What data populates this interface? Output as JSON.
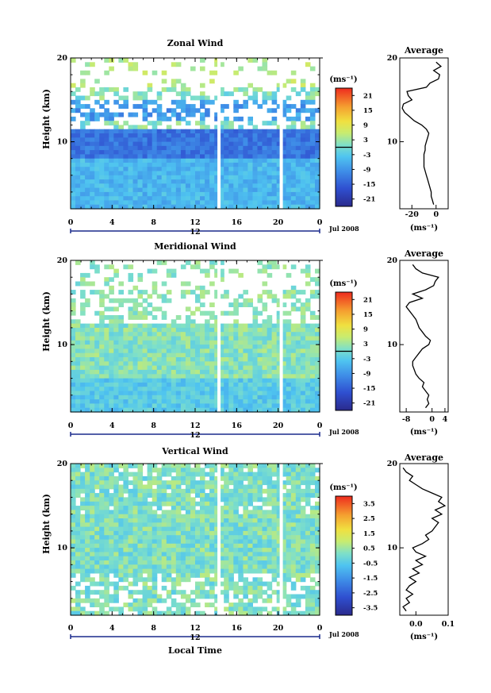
{
  "chart_data": [
    {
      "id": "zonal",
      "type": "heatmap",
      "title": "Zonal Wind",
      "ylabel": "Height (km)",
      "xticks": [
        "0",
        "4",
        "8",
        "12",
        "16",
        "20",
        "0"
      ],
      "xlim": [
        0,
        24
      ],
      "ylim": [
        2,
        20
      ],
      "yticks": [
        10,
        20
      ],
      "day_label": "12",
      "date_label": "Jul 2008",
      "gaps_local_time": [
        14.3,
        20.3
      ],
      "colorbar": {
        "unit": "(ms⁻¹)",
        "ticks": [
          "21",
          "15",
          "9",
          "3",
          "-3",
          "-9",
          "-15",
          "-21"
        ],
        "range": [
          -24,
          24
        ],
        "zero_line": true
      },
      "profile": {
        "title": "Average",
        "xticks": [
          "-20",
          "0"
        ],
        "xlim": [
          -30,
          10
        ],
        "unit": "(ms⁻¹)",
        "height": [
          2.5,
          3,
          3.5,
          4,
          4.5,
          5,
          5.5,
          6,
          6.5,
          7,
          7.5,
          8,
          8.5,
          9,
          9.5,
          10,
          10.5,
          11,
          11.5,
          12,
          12.5,
          13,
          13.5,
          14,
          14.5,
          15,
          15.5,
          16,
          16.5,
          17,
          17.5,
          18,
          18.5,
          19,
          19.5
        ],
        "value": [
          -2,
          -3,
          -4,
          -4,
          -5,
          -6,
          -7,
          -8,
          -9,
          -10,
          -10,
          -10,
          -10,
          -9,
          -9,
          -8,
          -7,
          -6,
          -8,
          -12,
          -18,
          -22,
          -26,
          -28,
          -27,
          -20,
          -23,
          -24,
          -8,
          -5,
          2,
          3,
          -2,
          4,
          0
        ]
      }
    },
    {
      "id": "meridional",
      "type": "heatmap",
      "title": "Meridional Wind",
      "ylabel": "Height (km)",
      "xticks": [
        "0",
        "4",
        "8",
        "12",
        "16",
        "20",
        "0"
      ],
      "xlim": [
        0,
        24
      ],
      "ylim": [
        2,
        20
      ],
      "yticks": [
        10,
        20
      ],
      "day_label": "12",
      "date_label": "Jul 2008",
      "gaps_local_time": [
        14.3,
        20.3
      ],
      "colorbar": {
        "unit": "(ms⁻¹)",
        "ticks": [
          "21",
          "15",
          "9",
          "3",
          "-3",
          "-9",
          "-15",
          "-21"
        ],
        "range": [
          -24,
          24
        ],
        "zero_line": true
      },
      "profile": {
        "title": "Average",
        "xticks": [
          "-8",
          "0",
          "4"
        ],
        "xlim": [
          -10,
          5
        ],
        "unit": "(ms⁻¹)",
        "height": [
          2.5,
          3,
          3.5,
          4,
          4.5,
          5,
          5.5,
          6,
          6.5,
          7,
          7.5,
          8,
          8.5,
          9,
          9.5,
          10,
          10.5,
          11,
          11.5,
          12,
          12.5,
          13,
          13.5,
          14,
          14.5,
          15,
          15.5,
          16,
          16.5,
          17,
          17.5,
          18,
          18.5,
          19,
          19.5
        ],
        "value": [
          -2,
          -1,
          -1.5,
          -1,
          -2,
          -3,
          -2.5,
          -4,
          -5,
          -5.5,
          -6,
          -6,
          -5,
          -4,
          -3,
          -1,
          -0.5,
          -2,
          -3,
          -4,
          -4.5,
          -5,
          -6,
          -7,
          -8,
          -7,
          -3,
          -6,
          -2,
          0.5,
          1,
          2,
          -3,
          -5,
          -6
        ]
      }
    },
    {
      "id": "vertical",
      "type": "heatmap",
      "title": "Vertical Wind",
      "ylabel": "Height (km)",
      "xlabel": "Local Time",
      "xticks": [
        "0",
        "4",
        "8",
        "12",
        "16",
        "20",
        "0"
      ],
      "xlim": [
        0,
        24
      ],
      "ylim": [
        2,
        20
      ],
      "yticks": [
        10,
        20
      ],
      "day_label": "12",
      "date_label": "Jul 2008",
      "gaps_local_time": [
        14.3,
        20.3
      ],
      "colorbar": {
        "unit": "(ms⁻¹)",
        "ticks": [
          "3.5",
          "2.5",
          "1.5",
          "0.5",
          "-0.5",
          "-1.5",
          "-2.5",
          "-3.5"
        ],
        "range": [
          -4,
          4
        ],
        "zero_line": false
      },
      "profile": {
        "title": "Average",
        "xticks": [
          "0.0",
          "0.1"
        ],
        "xlim": [
          -0.05,
          0.1
        ],
        "unit": "(ms⁻¹)",
        "height": [
          2.5,
          3,
          3.5,
          4,
          4.5,
          5,
          5.5,
          6,
          6.5,
          7,
          7.5,
          8,
          8.5,
          9,
          9.5,
          10,
          10.5,
          11,
          11.5,
          12,
          12.5,
          13,
          13.5,
          14,
          14.5,
          15,
          15.5,
          16,
          16.5,
          17,
          17.5,
          18,
          18.5,
          19,
          19.5
        ],
        "value": [
          -0.03,
          -0.04,
          -0.02,
          -0.03,
          -0.01,
          -0.03,
          -0.02,
          0.0,
          -0.02,
          0.01,
          -0.01,
          0.02,
          0.0,
          0.03,
          0.0,
          -0.01,
          0.02,
          0.04,
          0.03,
          0.05,
          0.06,
          0.07,
          0.05,
          0.08,
          0.06,
          0.09,
          0.07,
          0.08,
          0.05,
          0.02,
          0.0,
          -0.02,
          -0.01,
          -0.03,
          -0.04
        ]
      }
    }
  ]
}
